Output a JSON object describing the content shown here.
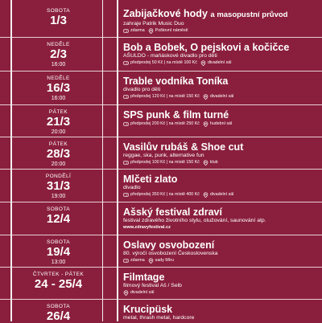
{
  "events": [
    {
      "dow": "SOBOTA",
      "date": "1/3",
      "time": "",
      "title": "Zabijačkové hody",
      "title_tail": "a masopustní průvod",
      "sub": "zahraje Patrik Music Duo",
      "meta": [
        {
          "icon": "ticket-icon",
          "text": "zdarma"
        },
        {
          "icon": "location-icon",
          "text": "Poštovní náměstí"
        }
      ],
      "web": ""
    },
    {
      "dow": "NEDĚLE",
      "date": "2/3",
      "time": "16:00",
      "title": "Bob a Bobek, O pejskovi a kočičce",
      "title_tail": "",
      "sub": "AŠULDO - mańáskové divadlo pro děti",
      "meta": [
        {
          "icon": "ticket-icon",
          "text": "předprodej 50 Kč | na místě 100 Kč"
        },
        {
          "icon": "location-icon",
          "text": "divadelní sál"
        }
      ],
      "web": ""
    },
    {
      "dow": "NEDĚLE",
      "date": "16/3",
      "time": "16:00",
      "title": "Trable vodníka Toníka",
      "title_tail": "",
      "sub": "divadlo pro děti",
      "meta": [
        {
          "icon": "ticket-icon",
          "text": "předprodej 120 Kč | na místě 150 Kč"
        },
        {
          "icon": "location-icon",
          "text": "divadelní sál"
        }
      ],
      "web": ""
    },
    {
      "dow": "PÁTEK",
      "date": "21/3",
      "time": "20:00",
      "title": "SPS punk & film turné",
      "title_tail": "",
      "sub": "",
      "meta": [
        {
          "icon": "ticket-icon",
          "text": "předprodej 200 Kč | na místě 250 Kč"
        },
        {
          "icon": "location-icon",
          "text": "hudební sál"
        }
      ],
      "web": ""
    },
    {
      "dow": "PÁTEK",
      "date": "28/3",
      "time": "20:00",
      "title": "Vasilův rubáš & Shoe cut",
      "title_tail": "",
      "sub": "reggae, ska, punk, alternative fun",
      "meta": [
        {
          "icon": "ticket-icon",
          "text": "předprodej 100 Kč | na místě 150 Kč"
        },
        {
          "icon": "location-icon",
          "text": "klub"
        }
      ],
      "web": ""
    },
    {
      "dow": "PONDĚLÍ",
      "date": "31/3",
      "time": "19:00",
      "title": "Mlčeti zlato",
      "title_tail": "",
      "sub": "divadlo",
      "meta": [
        {
          "icon": "ticket-icon",
          "text": "předprodej 350 Kč | na místě 400 Kč"
        },
        {
          "icon": "location-icon",
          "text": "divadelní sál"
        }
      ],
      "web": ""
    },
    {
      "dow": "SOBOTA",
      "date": "12/4",
      "time": "",
      "title": "Ašský festival zdraví",
      "title_tail": "",
      "sub": "festival zdravého životního stylu, otužování, saunování atp.",
      "meta": [],
      "web": "www.zdravyfestival.cz"
    },
    {
      "dow": "SOBOTA",
      "date": "19/4",
      "time": "13:00",
      "title": "Oslavy osvobození",
      "title_tail": "",
      "sub": "80. výročí osvobození Československa",
      "meta": [
        {
          "icon": "ticket-icon",
          "text": "zdarma"
        },
        {
          "icon": "location-icon",
          "text": "sady Míru"
        }
      ],
      "web": ""
    },
    {
      "dow": "ČTVRTEK - PÁTEK",
      "date": "24 - 25/4",
      "time": "",
      "title": "Filmtage",
      "title_tail": "",
      "sub": "filmový festival Aš / Selb",
      "meta": [
        {
          "icon": "location-icon",
          "text": "divadelní sál"
        }
      ],
      "web": ""
    },
    {
      "dow": "SOBOTA",
      "date": "26/4",
      "time": "",
      "title": "Krucipüsk",
      "title_tail": "",
      "sub": "metal, thrash metal, hardcore",
      "meta": [],
      "web": ""
    }
  ],
  "colors": {
    "background": "#8a1f3d",
    "lines": "#f4eef0",
    "text": "#ffffff"
  }
}
